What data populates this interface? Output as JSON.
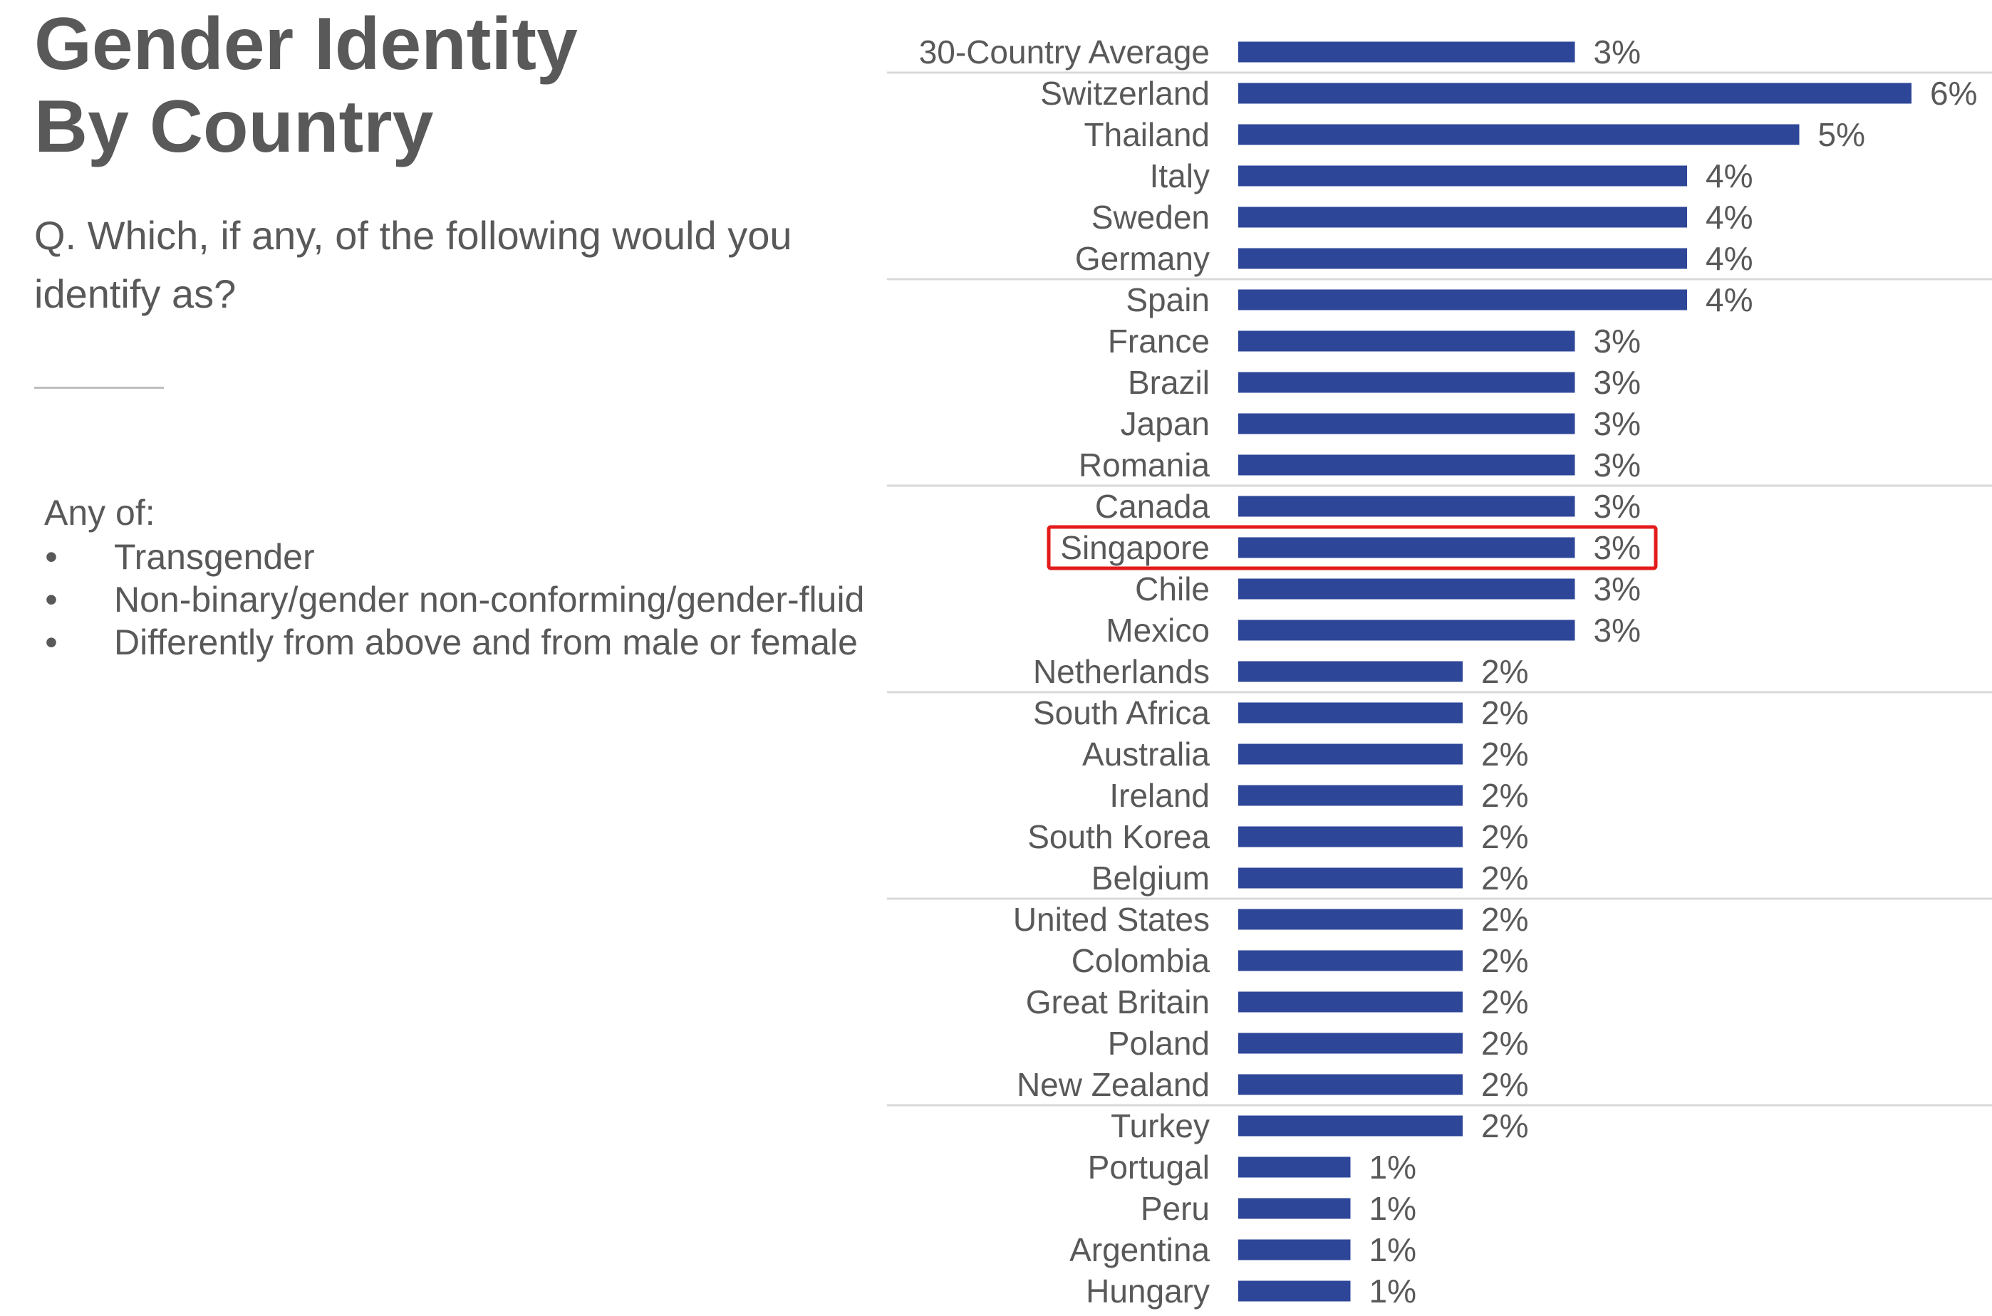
{
  "header": {
    "title_line1": "Gender Identity",
    "title_line2": "By Country",
    "question": "Q. Which, if any, of the following would you identify as?"
  },
  "legend": {
    "intro": "Any of:",
    "bullet_symbol": "•",
    "items": [
      "Transgender",
      "Non-binary/gender non-conforming/gender-fluid",
      "Differently from above and from male or female"
    ]
  },
  "colors": {
    "bar": "#2E4698",
    "text": "#595959",
    "separator": "#d9d9d9",
    "highlight": "#e31b1b"
  },
  "chart_data": {
    "type": "bar",
    "orientation": "horizontal",
    "value_suffix": "%",
    "xlim": [
      0,
      6
    ],
    "highlighted_category": "Singapore",
    "categories": [
      "30-Country Average",
      "Switzerland",
      "Thailand",
      "Italy",
      "Sweden",
      "Germany",
      "Spain",
      "France",
      "Brazil",
      "Japan",
      "Romania",
      "Canada",
      "Singapore",
      "Chile",
      "Mexico",
      "Netherlands",
      "South Africa",
      "Australia",
      "Ireland",
      "South Korea",
      "Belgium",
      "United States",
      "Colombia",
      "Great Britain",
      "Poland",
      "New Zealand",
      "Turkey",
      "Portugal",
      "Peru",
      "Argentina",
      "Hungary"
    ],
    "values": [
      3,
      6,
      5,
      4,
      4,
      4,
      4,
      3,
      3,
      3,
      3,
      3,
      3,
      3,
      3,
      2,
      2,
      2,
      2,
      2,
      2,
      2,
      2,
      2,
      2,
      2,
      2,
      1,
      1,
      1,
      1
    ],
    "separators_after": [
      "30-Country Average",
      "Germany",
      "Romania",
      "Netherlands",
      "Belgium",
      "New Zealand"
    ]
  }
}
